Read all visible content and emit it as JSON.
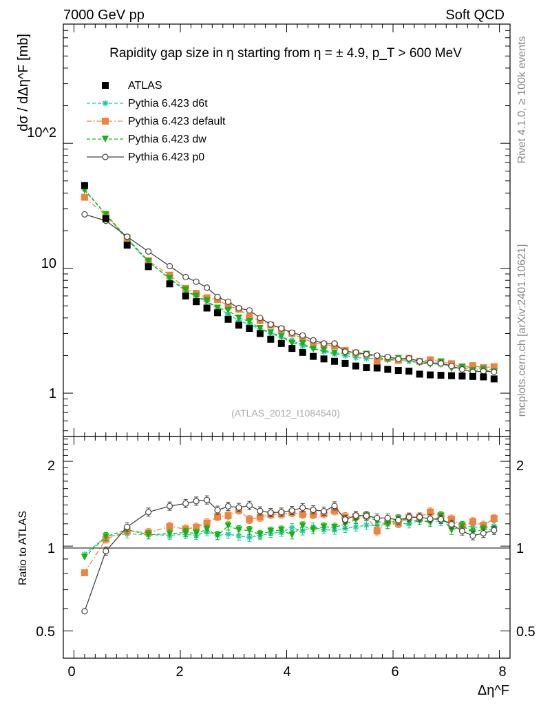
{
  "header": {
    "left": "7000 GeV pp",
    "right": "Soft QCD"
  },
  "side_labels": {
    "rivet": "Rivet 4.1.0, ≥ 100k events",
    "mcplots": "mcplots.cern.ch [arXiv:2401.10621]"
  },
  "chart_data": {
    "type": "scatter",
    "title": "Rapidity gap size in η starting from η = ± 4.9, p_T > 600 MeV",
    "ylabel": "dσ / dΔη^F [mb]",
    "xlabel": "Δη^F",
    "ratio_ylabel": "Ratio to ATLAS",
    "watermark": "(ATLAS_2012_I1084540)",
    "xlim": [
      -0.2,
      8.2
    ],
    "ylim": [
      0.45,
      900
    ],
    "yscale": "log",
    "ratio_ylim": [
      0.4,
      2.45
    ],
    "ratio_yscale": "log",
    "x_ticks": [
      0,
      2,
      4,
      6,
      8
    ],
    "y_tick_labels": [
      "1",
      "10",
      "10^2"
    ],
    "ratio_tick_labels": [
      "0.5",
      "1",
      "2"
    ],
    "x": [
      0.2,
      0.6,
      1.0,
      1.4,
      1.8,
      2.1,
      2.3,
      2.5,
      2.7,
      2.9,
      3.1,
      3.3,
      3.5,
      3.7,
      3.9,
      4.1,
      4.3,
      4.5,
      4.7,
      4.9,
      5.1,
      5.3,
      5.5,
      5.7,
      5.9,
      6.1,
      6.3,
      6.5,
      6.7,
      6.9,
      7.1,
      7.3,
      7.5,
      7.7,
      7.9
    ],
    "series": [
      {
        "name": "ATLAS",
        "color": "#000000",
        "marker": "square",
        "line": "none",
        "values": [
          46,
          25,
          15.3,
          10.3,
          7.5,
          6.0,
          5.4,
          4.8,
          4.4,
          3.9,
          3.5,
          3.3,
          3.0,
          2.7,
          2.5,
          2.28,
          2.12,
          1.97,
          1.88,
          1.8,
          1.73,
          1.65,
          1.6,
          1.59,
          1.55,
          1.52,
          1.5,
          1.42,
          1.4,
          1.39,
          1.38,
          1.37,
          1.36,
          1.35,
          1.3
        ]
      },
      {
        "name": "Pythia 6.423 d6t",
        "color": "#1ec8a0",
        "marker": "star",
        "line": "dashed",
        "values": [
          43,
          27,
          16.9,
          11.3,
          8.2,
          6.6,
          5.9,
          5.4,
          4.8,
          4.3,
          3.8,
          3.55,
          3.27,
          3.0,
          2.8,
          2.65,
          2.4,
          2.3,
          2.15,
          2.05,
          2.0,
          1.93,
          1.9,
          1.88,
          1.85,
          1.83,
          1.8,
          1.75,
          1.72,
          1.7,
          1.68,
          1.62,
          1.59,
          1.57,
          1.53
        ]
      },
      {
        "name": "Pythia 6.423 default",
        "color": "#f0823c",
        "marker": "square",
        "line": "dashdot",
        "values": [
          37,
          26.5,
          17.3,
          11.5,
          8.8,
          6.9,
          6.3,
          5.8,
          5.6,
          5.0,
          4.7,
          4.1,
          3.8,
          3.5,
          3.25,
          3.0,
          2.75,
          2.55,
          2.45,
          2.4,
          2.2,
          2.1,
          2.05,
          1.8,
          1.9,
          1.83,
          1.9,
          1.8,
          1.85,
          1.78,
          1.72,
          1.62,
          1.66,
          1.6,
          1.63
        ]
      },
      {
        "name": "Pythia 6.423 dw",
        "color": "#14b414",
        "marker": "triangle-down",
        "line": "dashed",
        "values": [
          42,
          27,
          17.5,
          11.3,
          8.3,
          6.7,
          6.0,
          5.5,
          4.8,
          4.6,
          4.0,
          3.75,
          3.3,
          3.05,
          2.85,
          2.5,
          2.5,
          2.25,
          2.2,
          2.1,
          2.07,
          2.05,
          2.05,
          1.95,
          1.85,
          1.9,
          1.85,
          1.75,
          1.7,
          1.78,
          1.57,
          1.62,
          1.52,
          1.55,
          1.48
        ]
      },
      {
        "name": "Pythia 6.423 p0",
        "color": "#444444",
        "marker": "circle-open",
        "line": "solid",
        "values": [
          27,
          24,
          17.9,
          13.6,
          10.4,
          8.5,
          7.8,
          7.0,
          5.9,
          5.4,
          4.8,
          4.6,
          4.0,
          3.55,
          3.3,
          3.05,
          2.9,
          2.65,
          2.5,
          2.5,
          2.15,
          2.12,
          2.05,
          2.0,
          1.95,
          1.88,
          1.9,
          1.8,
          1.75,
          1.73,
          1.65,
          1.55,
          1.48,
          1.5,
          1.48
        ]
      }
    ],
    "legend_position": "top-left"
  }
}
